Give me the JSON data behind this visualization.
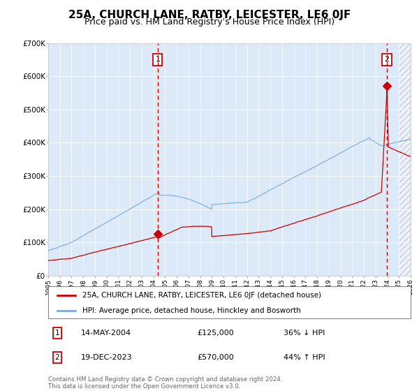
{
  "title": "25A, CHURCH LANE, RATBY, LEICESTER, LE6 0JF",
  "subtitle": "Price paid vs. HM Land Registry's House Price Index (HPI)",
  "hpi_label": "HPI: Average price, detached house, Hinckley and Bosworth",
  "property_label": "25A, CHURCH LANE, RATBY, LEICESTER, LE6 0JF (detached house)",
  "hpi_color": "#7aaddc",
  "property_color": "#cc0000",
  "sale1_date_num": 2004.37,
  "sale1_price": 125000,
  "sale1_text": "14-MAY-2004",
  "sale1_annotation": "36% ↓ HPI",
  "sale2_date_num": 2023.96,
  "sale2_price": 570000,
  "sale2_text": "19-DEC-2023",
  "sale2_annotation": "44% ↑ HPI",
  "ylim": [
    0,
    700000
  ],
  "xlim_start": 1995.0,
  "xlim_end": 2026.0,
  "background_color": "#dce9f8",
  "grid_color": "#ffffff",
  "footnote": "Contains HM Land Registry data © Crown copyright and database right 2024.\nThis data is licensed under the Open Government Licence v3.0.",
  "title_fontsize": 11,
  "subtitle_fontsize": 9,
  "ytick_labels": [
    "£0",
    "£100K",
    "£200K",
    "£300K",
    "£400K",
    "£500K",
    "£600K",
    "£700K"
  ],
  "ytick_values": [
    0,
    100000,
    200000,
    300000,
    400000,
    500000,
    600000,
    700000
  ]
}
